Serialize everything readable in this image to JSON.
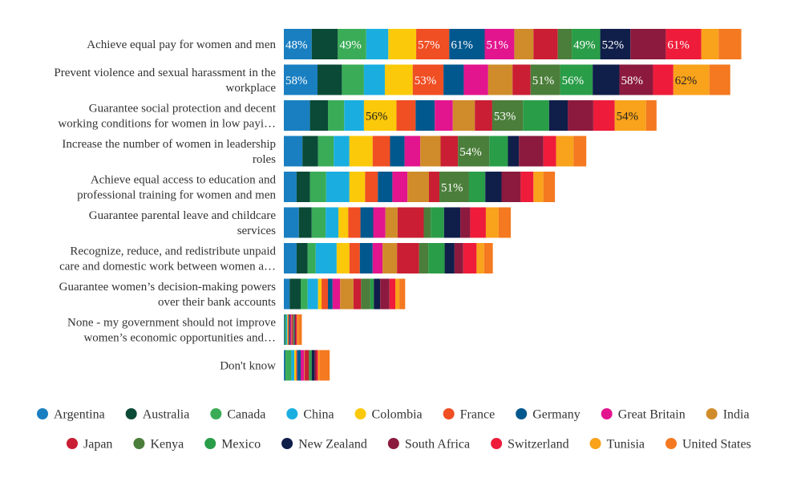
{
  "chart_data": {
    "type": "bar",
    "stacked": true,
    "orientation": "horizontal",
    "legend_position": "bottom",
    "grid": false,
    "categories": [
      [
        "Achieve equal pay for women and men"
      ],
      [
        "Prevent violence and sexual harassment in the",
        "workplace"
      ],
      [
        "Guarantee social protection and decent",
        "working conditions for women in low payi…"
      ],
      [
        "Increase the number of women in leadership",
        "roles"
      ],
      [
        "Achieve equal access to education and",
        "professional training for women and men"
      ],
      [
        "Guarantee parental leave and childcare",
        "services"
      ],
      [
        "Recognize, reduce, and redistribute unpaid",
        "care and domestic work between women a…"
      ],
      [
        "Guarantee women’s decision-making powers",
        "over their bank accounts"
      ],
      [
        "None - my government should not improve",
        "women’s economic opportunities and…"
      ],
      [
        "Don't know"
      ]
    ],
    "series": [
      {
        "name": "Argentina",
        "color": "#1a7fc1",
        "values": [
          48,
          58,
          45,
          32,
          22,
          26,
          22,
          10,
          1,
          2
        ]
      },
      {
        "name": "Australia",
        "color": "#0a4a36",
        "values": [
          45,
          42,
          31,
          27,
          23,
          22,
          19,
          19,
          1,
          1
        ]
      },
      {
        "name": "Canada",
        "color": "#3aac57",
        "values": [
          49,
          38,
          28,
          27,
          28,
          24,
          14,
          12,
          2,
          10
        ]
      },
      {
        "name": "China",
        "color": "#1aaee0",
        "values": [
          38,
          36,
          34,
          27,
          40,
          22,
          36,
          18,
          2,
          5
        ]
      },
      {
        "name": "Colombia",
        "color": "#fbc90a",
        "values": [
          48,
          48,
          56,
          40,
          27,
          17,
          22,
          6,
          1,
          3
        ]
      },
      {
        "name": "France",
        "color": "#f04e23",
        "values": [
          57,
          53,
          33,
          30,
          22,
          21,
          18,
          11,
          2,
          2
        ]
      },
      {
        "name": "Germany",
        "color": "#00588e",
        "values": [
          61,
          35,
          33,
          25,
          25,
          22,
          22,
          8,
          2,
          6
        ]
      },
      {
        "name": "Great Britain",
        "color": "#e2158e",
        "values": [
          51,
          42,
          31,
          27,
          26,
          21,
          17,
          13,
          2,
          6
        ]
      },
      {
        "name": "India",
        "color": "#d08c2a",
        "values": [
          33,
          42,
          38,
          35,
          37,
          21,
          25,
          23,
          1,
          1
        ]
      },
      {
        "name": "Japan",
        "color": "#c91e33",
        "values": [
          42,
          31,
          30,
          30,
          18,
          45,
          38,
          13,
          2,
          7
        ]
      },
      {
        "name": "Kenya",
        "color": "#4b7e3a",
        "values": [
          24,
          51,
          53,
          54,
          51,
          12,
          16,
          16,
          1,
          2
        ]
      },
      {
        "name": "Mexico",
        "color": "#2a9d48",
        "values": [
          49,
          56,
          45,
          32,
          28,
          23,
          28,
          6,
          1,
          3
        ]
      },
      {
        "name": "New Zealand",
        "color": "#101e4a",
        "values": [
          52,
          46,
          32,
          19,
          28,
          28,
          17,
          11,
          1,
          5
        ]
      },
      {
        "name": "South Africa",
        "color": "#8b1a3e",
        "values": [
          61,
          58,
          44,
          42,
          33,
          17,
          15,
          16,
          2,
          3
        ]
      },
      {
        "name": "Switzerland",
        "color": "#ee1c3a",
        "values": [
          61,
          35,
          37,
          22,
          22,
          27,
          23,
          10,
          2,
          3
        ]
      },
      {
        "name": "Tunisia",
        "color": "#f9a21b",
        "values": [
          30,
          62,
          54,
          30,
          17,
          22,
          13,
          7,
          2,
          2
        ]
      },
      {
        "name": "United States",
        "color": "#f47920",
        "values": [
          39,
          36,
          18,
          22,
          20,
          21,
          15,
          10,
          6,
          18
        ]
      }
    ],
    "value_format": "{v}%",
    "labeled_values": [
      [
        "Argentina",
        0
      ],
      [
        "Canada",
        0
      ],
      [
        "France",
        0
      ],
      [
        "Germany",
        0
      ],
      [
        "Great Britain",
        0
      ],
      [
        "Mexico",
        0
      ],
      [
        "New Zealand",
        0
      ],
      [
        "Switzerland",
        0
      ],
      [
        "Argentina",
        1
      ],
      [
        "France",
        1
      ],
      [
        "Kenya",
        1
      ],
      [
        "Mexico",
        1
      ],
      [
        "South Africa",
        1
      ],
      [
        "Tunisia",
        1
      ],
      [
        "Colombia",
        2
      ],
      [
        "Kenya",
        2
      ],
      [
        "Tunisia",
        2
      ],
      [
        "Kenya",
        3
      ],
      [
        "Kenya",
        4
      ]
    ]
  }
}
